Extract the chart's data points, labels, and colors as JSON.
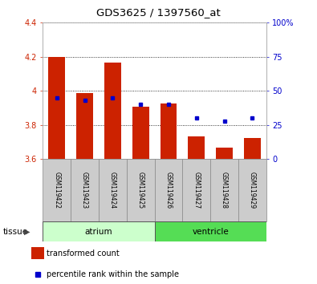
{
  "title": "GDS3625 / 1397560_at",
  "samples": [
    "GSM119422",
    "GSM119423",
    "GSM119424",
    "GSM119425",
    "GSM119426",
    "GSM119427",
    "GSM119428",
    "GSM119429"
  ],
  "bar_values": [
    4.2,
    3.985,
    4.165,
    3.905,
    3.925,
    3.735,
    3.665,
    3.725
  ],
  "bar_base": 3.6,
  "blue_dots_right": [
    45,
    43,
    45,
    40,
    40,
    30,
    28,
    30
  ],
  "tissue_groups": [
    {
      "label": "atrium",
      "start": 0,
      "end": 3,
      "color": "#ccffcc"
    },
    {
      "label": "ventricle",
      "start": 4,
      "end": 7,
      "color": "#55dd55"
    }
  ],
  "ylim": [
    3.6,
    4.4
  ],
  "y2lim": [
    0,
    100
  ],
  "y_ticks": [
    3.6,
    3.8,
    4.0,
    4.2,
    4.4
  ],
  "y2_ticks": [
    0,
    25,
    50,
    75,
    100
  ],
  "bar_color": "#cc2200",
  "dot_color": "#0000cc",
  "grid_color": "#000000",
  "bg_color": "#ffffff",
  "sample_bg": "#cccccc",
  "legend_bar_label": "transformed count",
  "legend_dot_label": "percentile rank within the sample",
  "tissue_label": "tissue"
}
